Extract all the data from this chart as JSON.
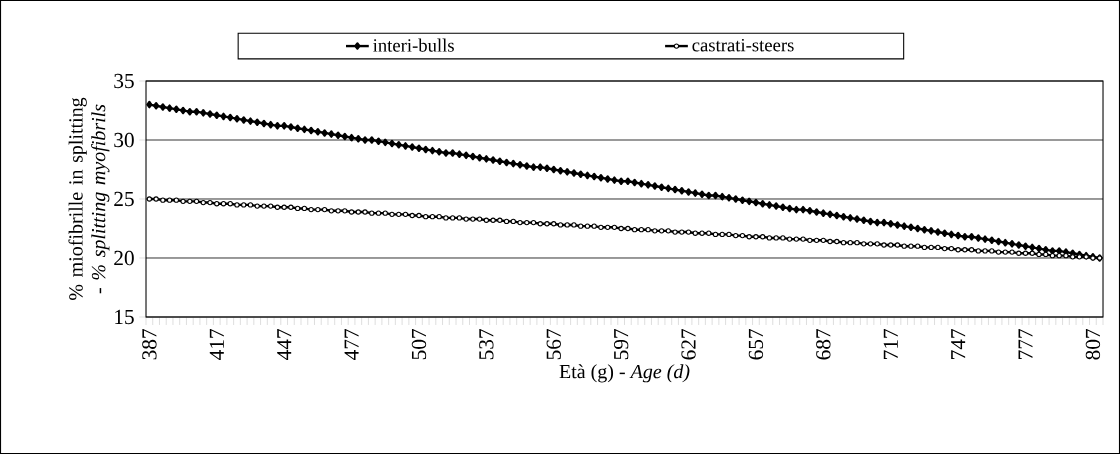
{
  "chart_data": {
    "type": "line",
    "xlabel": "Età (g) - *Age (d)*",
    "ylabel": "% miofibrille in splitting - *% splitting myofibrils*",
    "categories": [
      "387",
      null,
      null,
      null,
      null,
      null,
      null,
      null,
      null,
      null,
      "417",
      null,
      null,
      null,
      null,
      null,
      null,
      null,
      null,
      null,
      "447",
      null,
      null,
      null,
      null,
      null,
      null,
      null,
      null,
      null,
      "477",
      null,
      null,
      null,
      null,
      null,
      null,
      null,
      null,
      null,
      "507",
      null,
      null,
      null,
      null,
      null,
      null,
      null,
      null,
      null,
      "537",
      null,
      null,
      null,
      null,
      null,
      null,
      null,
      null,
      null,
      "567",
      null,
      null,
      null,
      null,
      null,
      null,
      null,
      null,
      null,
      "597",
      null,
      null,
      null,
      null,
      null,
      null,
      null,
      null,
      null,
      "627",
      null,
      null,
      null,
      null,
      null,
      null,
      null,
      null,
      null,
      "657",
      null,
      null,
      null,
      null,
      null,
      null,
      null,
      null,
      null,
      "687",
      null,
      null,
      null,
      null,
      null,
      null,
      null,
      null,
      null,
      "717",
      null,
      null,
      null,
      null,
      null,
      null,
      null,
      null,
      null,
      "747",
      null,
      null,
      null,
      null,
      null,
      null,
      null,
      null,
      null,
      "777",
      null,
      null,
      null,
      null,
      null,
      null,
      null,
      null,
      null,
      "807",
      null
    ],
    "series": [
      {
        "name": "interi-bulls",
        "color": "#000000",
        "marker": "diamond",
        "values": [
          33.0,
          32.9,
          32.8,
          32.7,
          32.6,
          32.5,
          32.4,
          32.4,
          32.3,
          32.2,
          32.1,
          32.0,
          31.9,
          31.8,
          31.7,
          31.6,
          31.5,
          31.4,
          31.3,
          31.2,
          31.2,
          31.1,
          31.0,
          30.9,
          30.8,
          30.7,
          30.6,
          30.5,
          30.4,
          30.3,
          30.2,
          30.1,
          30.0,
          30.0,
          29.9,
          29.8,
          29.7,
          29.6,
          29.5,
          29.4,
          29.3,
          29.2,
          29.1,
          29.0,
          28.9,
          28.9,
          28.8,
          28.7,
          28.6,
          28.5,
          28.4,
          28.3,
          28.2,
          28.1,
          28.0,
          27.9,
          27.8,
          27.7,
          27.7,
          27.6,
          27.5,
          27.4,
          27.3,
          27.2,
          27.1,
          27.0,
          26.9,
          26.8,
          26.7,
          26.6,
          26.5,
          26.5,
          26.4,
          26.3,
          26.2,
          26.1,
          26.0,
          25.9,
          25.8,
          25.7,
          25.6,
          25.5,
          25.4,
          25.3,
          25.3,
          25.2,
          25.1,
          25.0,
          24.9,
          24.8,
          24.7,
          24.6,
          24.5,
          24.4,
          24.3,
          24.2,
          24.1,
          24.1,
          24.0,
          23.9,
          23.8,
          23.7,
          23.6,
          23.5,
          23.4,
          23.3,
          23.2,
          23.1,
          23.0,
          23.0,
          22.9,
          22.8,
          22.7,
          22.6,
          22.5,
          22.4,
          22.3,
          22.2,
          22.1,
          22.0,
          21.9,
          21.8,
          21.8,
          21.7,
          21.6,
          21.5,
          21.4,
          21.3,
          21.2,
          21.1,
          21.0,
          20.9,
          20.8,
          20.7,
          20.6,
          20.6,
          20.5,
          20.4,
          20.3,
          20.2,
          20.1,
          20.0
        ]
      },
      {
        "name": "castrati-steers",
        "color": "#000000",
        "marker": "circle",
        "values": [
          25.0,
          25.0,
          24.9,
          24.9,
          24.9,
          24.8,
          24.8,
          24.8,
          24.7,
          24.7,
          24.6,
          24.6,
          24.6,
          24.5,
          24.5,
          24.5,
          24.4,
          24.4,
          24.4,
          24.3,
          24.3,
          24.3,
          24.2,
          24.2,
          24.1,
          24.1,
          24.1,
          24.0,
          24.0,
          24.0,
          23.9,
          23.9,
          23.9,
          23.8,
          23.8,
          23.8,
          23.7,
          23.7,
          23.7,
          23.6,
          23.6,
          23.5,
          23.5,
          23.5,
          23.4,
          23.4,
          23.4,
          23.3,
          23.3,
          23.3,
          23.2,
          23.2,
          23.2,
          23.1,
          23.1,
          23.0,
          23.0,
          23.0,
          22.9,
          22.9,
          22.9,
          22.8,
          22.8,
          22.8,
          22.7,
          22.7,
          22.7,
          22.6,
          22.6,
          22.6,
          22.5,
          22.5,
          22.4,
          22.4,
          22.4,
          22.3,
          22.3,
          22.3,
          22.2,
          22.2,
          22.2,
          22.1,
          22.1,
          22.1,
          22.0,
          22.0,
          22.0,
          21.9,
          21.9,
          21.8,
          21.8,
          21.8,
          21.7,
          21.7,
          21.7,
          21.6,
          21.6,
          21.6,
          21.5,
          21.5,
          21.5,
          21.4,
          21.4,
          21.3,
          21.3,
          21.3,
          21.2,
          21.2,
          21.2,
          21.1,
          21.1,
          21.1,
          21.0,
          21.0,
          21.0,
          20.9,
          20.9,
          20.9,
          20.8,
          20.8,
          20.7,
          20.7,
          20.7,
          20.6,
          20.6,
          20.6,
          20.5,
          20.5,
          20.5,
          20.4,
          20.4,
          20.4,
          20.3,
          20.3,
          20.2,
          20.2,
          20.2,
          20.1,
          20.1,
          20.1,
          20.0,
          20.0
        ]
      }
    ],
    "ylim": [
      15,
      35
    ],
    "yticks": [
      15,
      20,
      25,
      30,
      35
    ],
    "grid": "y",
    "legend": "top",
    "line_style": "solid"
  }
}
